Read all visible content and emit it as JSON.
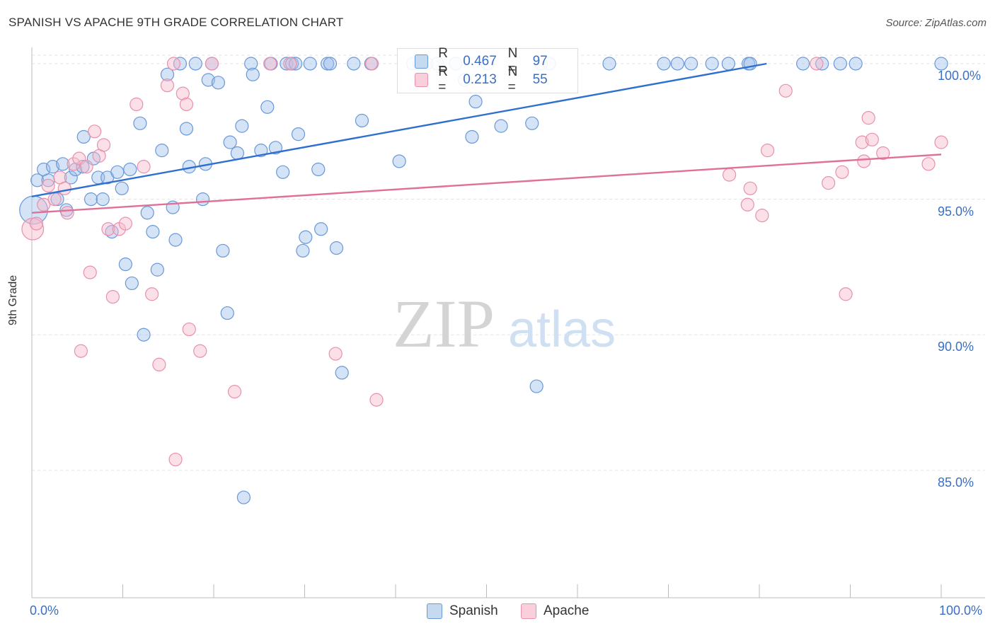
{
  "title": "SPANISH VS APACHE 9TH GRADE CORRELATION CHART",
  "source": "Source: ZipAtlas.com",
  "watermark": {
    "zip": "ZIP",
    "atlas": "atlas"
  },
  "legend": {
    "rows": [
      {
        "r_label": "R =",
        "r_value": "0.467",
        "n_label": "N =",
        "n_value": "97"
      },
      {
        "r_label": "R =",
        "r_value": "0.213",
        "n_label": "N =",
        "n_value": "55"
      }
    ]
  },
  "bottom_legend": [
    "Spanish",
    "Apache"
  ],
  "chart_data": {
    "type": "scatter",
    "title": "SPANISH VS APACHE 9TH GRADE CORRELATION CHART",
    "xlabel": "",
    "ylabel": "9th Grade",
    "xlim": [
      0,
      100
    ],
    "ylim": [
      80.3,
      100.6
    ],
    "x_tick_labels": [
      "0.0%",
      "100.0%"
    ],
    "y_tick_labels": [
      "85.0%",
      "90.0%",
      "95.0%",
      "100.0%"
    ],
    "y_ticks": [
      85,
      90,
      95,
      100
    ],
    "grid": true,
    "legend_position": "top-center",
    "colors": {
      "Spanish": "#5b8fd6",
      "Apache": "#e889a6",
      "Spanish_line": "#2f6fcf",
      "Apache_line": "#e07098"
    },
    "series": [
      {
        "name": "Spanish",
        "trend": {
          "x": [
            0,
            80.8
          ],
          "y": [
            95.1,
            100
          ]
        },
        "points": [
          [
            0.2,
            94.6,
            2.2
          ],
          [
            0.6,
            95.7,
            1
          ],
          [
            1.3,
            96.1,
            1
          ],
          [
            1.8,
            95.7,
            1
          ],
          [
            2.3,
            96.2,
            1
          ],
          [
            2.8,
            95.0,
            1
          ],
          [
            3.4,
            96.3,
            1
          ],
          [
            3.8,
            94.6,
            1
          ],
          [
            4.3,
            95.8,
            1
          ],
          [
            4.8,
            96.1,
            1
          ],
          [
            5.6,
            96.2,
            1
          ],
          [
            5.7,
            97.3,
            1
          ],
          [
            6.5,
            95.0,
            1
          ],
          [
            6.8,
            96.5,
            1
          ],
          [
            7.3,
            95.8,
            1
          ],
          [
            7.8,
            95.0,
            1
          ],
          [
            8.3,
            95.8,
            1
          ],
          [
            8.8,
            93.8,
            1
          ],
          [
            9.4,
            96.0,
            1
          ],
          [
            9.9,
            95.4,
            1
          ],
          [
            10.3,
            92.6,
            1
          ],
          [
            10.8,
            96.1,
            1
          ],
          [
            11.0,
            91.9,
            1
          ],
          [
            11.9,
            97.8,
            1
          ],
          [
            12.3,
            90.0,
            1
          ],
          [
            12.7,
            94.5,
            1
          ],
          [
            13.3,
            93.8,
            1
          ],
          [
            13.8,
            92.4,
            1
          ],
          [
            14.3,
            96.8,
            1
          ],
          [
            14.9,
            99.6,
            1
          ],
          [
            15.5,
            94.7,
            1
          ],
          [
            15.8,
            93.5,
            1
          ],
          [
            16.3,
            100.0,
            1
          ],
          [
            17.0,
            97.6,
            1
          ],
          [
            17.3,
            96.2,
            1
          ],
          [
            18.0,
            100.0,
            1
          ],
          [
            18.8,
            95.0,
            1
          ],
          [
            19.1,
            96.3,
            1
          ],
          [
            19.4,
            99.4,
            1
          ],
          [
            19.8,
            100.0,
            1
          ],
          [
            20.5,
            99.3,
            1
          ],
          [
            21.0,
            93.1,
            1
          ],
          [
            21.5,
            90.8,
            1
          ],
          [
            21.8,
            97.1,
            1
          ],
          [
            22.6,
            96.7,
            1
          ],
          [
            23.1,
            97.7,
            1
          ],
          [
            23.3,
            84.0,
            1
          ],
          [
            24.1,
            100.0,
            1
          ],
          [
            24.3,
            99.6,
            1
          ],
          [
            25.2,
            96.8,
            1
          ],
          [
            25.9,
            98.4,
            1
          ],
          [
            26.3,
            100.0,
            1
          ],
          [
            26.8,
            96.9,
            1
          ],
          [
            27.6,
            96.0,
            1
          ],
          [
            28.0,
            100.0,
            1
          ],
          [
            28.6,
            100.0,
            1
          ],
          [
            29.0,
            100.0,
            1
          ],
          [
            29.3,
            97.4,
            1
          ],
          [
            29.8,
            93.1,
            1
          ],
          [
            30.1,
            93.6,
            1
          ],
          [
            30.6,
            100.0,
            1
          ],
          [
            31.5,
            96.1,
            1
          ],
          [
            31.8,
            93.9,
            1
          ],
          [
            32.5,
            100.0,
            1
          ],
          [
            32.8,
            100.0,
            1
          ],
          [
            33.5,
            93.2,
            1
          ],
          [
            34.1,
            88.6,
            1
          ],
          [
            35.4,
            100.0,
            1
          ],
          [
            36.3,
            97.9,
            1
          ],
          [
            37.3,
            100.0,
            1
          ],
          [
            40.4,
            96.4,
            1
          ],
          [
            41.9,
            100.0,
            1
          ],
          [
            42.6,
            100.0,
            1
          ],
          [
            43.4,
            100.0,
            1
          ],
          [
            44.6,
            100.0,
            1
          ],
          [
            46.6,
            100.0,
            1
          ],
          [
            47.6,
            99.4,
            1
          ],
          [
            48.4,
            97.3,
            1
          ],
          [
            48.8,
            98.6,
            1
          ],
          [
            50.1,
            100.0,
            1
          ],
          [
            51.6,
            97.7,
            1
          ],
          [
            55.0,
            97.8,
            1
          ],
          [
            55.5,
            88.1,
            1
          ],
          [
            56.0,
            100.0,
            1
          ],
          [
            56.9,
            100.0,
            1
          ],
          [
            63.5,
            100.0,
            1
          ],
          [
            69.5,
            100.0,
            1
          ],
          [
            71.0,
            100.0,
            1
          ],
          [
            72.5,
            100.0,
            1
          ],
          [
            74.8,
            100.0,
            1
          ],
          [
            76.6,
            100.0,
            1
          ],
          [
            78.8,
            100.0,
            1
          ],
          [
            79.0,
            100.0,
            1
          ],
          [
            84.8,
            100.0,
            1
          ],
          [
            86.9,
            100.0,
            1
          ],
          [
            88.9,
            100.0,
            1
          ],
          [
            90.6,
            100.0,
            1
          ],
          [
            100.0,
            100.0,
            1
          ]
        ]
      },
      {
        "name": "Apache",
        "trend": {
          "x": [
            0,
            100
          ],
          "y": [
            94.5,
            96.65
          ]
        },
        "points": [
          [
            0.1,
            93.9,
            1.7
          ],
          [
            0.5,
            94.1,
            1
          ],
          [
            1.3,
            94.8,
            1
          ],
          [
            1.8,
            95.5,
            1
          ],
          [
            2.5,
            95.0,
            1
          ],
          [
            3.1,
            95.8,
            1
          ],
          [
            3.6,
            95.4,
            1
          ],
          [
            3.9,
            94.5,
            1
          ],
          [
            4.6,
            96.3,
            1
          ],
          [
            5.2,
            96.5,
            1
          ],
          [
            5.4,
            89.4,
            1
          ],
          [
            6.0,
            96.2,
            1
          ],
          [
            6.4,
            92.3,
            1
          ],
          [
            6.9,
            97.5,
            1
          ],
          [
            7.4,
            96.6,
            1
          ],
          [
            7.9,
            97.0,
            1
          ],
          [
            8.4,
            93.9,
            1
          ],
          [
            8.9,
            91.4,
            1
          ],
          [
            9.6,
            93.9,
            1
          ],
          [
            10.3,
            94.1,
            1
          ],
          [
            11.5,
            98.5,
            1
          ],
          [
            12.3,
            96.2,
            1
          ],
          [
            13.2,
            91.5,
            1
          ],
          [
            14.0,
            88.9,
            1
          ],
          [
            14.9,
            99.2,
            1
          ],
          [
            15.6,
            100.0,
            1
          ],
          [
            15.8,
            85.4,
            1
          ],
          [
            16.6,
            98.9,
            1
          ],
          [
            17.0,
            98.5,
            1
          ],
          [
            17.3,
            90.2,
            1
          ],
          [
            18.5,
            89.4,
            1
          ],
          [
            19.8,
            100.0,
            1
          ],
          [
            22.3,
            87.9,
            1
          ],
          [
            26.2,
            100.0,
            1
          ],
          [
            28.4,
            100.0,
            1
          ],
          [
            33.4,
            89.3,
            1
          ],
          [
            37.4,
            100.0,
            1
          ],
          [
            37.9,
            87.6,
            1
          ],
          [
            76.7,
            95.9,
            1
          ],
          [
            78.7,
            94.8,
            1
          ],
          [
            79.0,
            95.4,
            1
          ],
          [
            80.3,
            94.4,
            1
          ],
          [
            80.9,
            96.8,
            1
          ],
          [
            82.9,
            99.0,
            1
          ],
          [
            86.3,
            100.0,
            1
          ],
          [
            87.6,
            95.6,
            1
          ],
          [
            89.1,
            96.0,
            1
          ],
          [
            89.5,
            91.5,
            1
          ],
          [
            91.3,
            97.1,
            1
          ],
          [
            91.5,
            96.4,
            1
          ],
          [
            92.0,
            98.0,
            1
          ],
          [
            92.4,
            97.2,
            1
          ],
          [
            93.6,
            96.7,
            1
          ],
          [
            98.6,
            96.3,
            1
          ],
          [
            100.0,
            97.1,
            1
          ]
        ]
      }
    ]
  }
}
